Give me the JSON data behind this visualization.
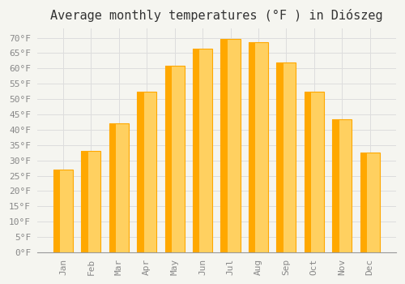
{
  "title": "Average monthly temperatures (°F ) in Diószeg",
  "months": [
    "Jan",
    "Feb",
    "Mar",
    "Apr",
    "May",
    "Jun",
    "Jul",
    "Aug",
    "Sep",
    "Oct",
    "Nov",
    "Dec"
  ],
  "values": [
    27,
    33,
    42,
    52.5,
    61,
    66.5,
    69.5,
    68.5,
    62,
    52.5,
    43.5,
    32.5
  ],
  "bar_color": "#FFA800",
  "bar_edge_color": "#FFB800",
  "bar_light_color": "#FFD060",
  "background_color": "#F5F5F0",
  "grid_color": "#DDDDDD",
  "text_color": "#888888",
  "ylim": [
    0,
    73
  ],
  "yticks": [
    0,
    5,
    10,
    15,
    20,
    25,
    30,
    35,
    40,
    45,
    50,
    55,
    60,
    65,
    70
  ],
  "title_fontsize": 11,
  "tick_fontsize": 8,
  "font_family": "monospace"
}
